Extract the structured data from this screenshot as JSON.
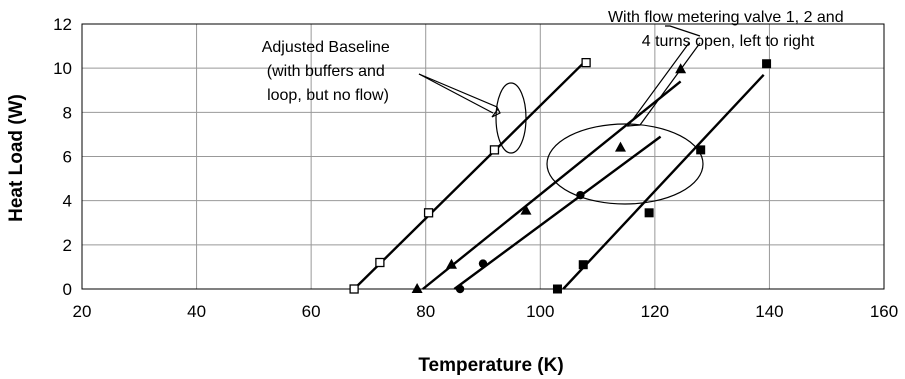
{
  "chart_data": {
    "type": "scatter",
    "title": "",
    "xlabel": "Temperature (K)",
    "ylabel": "Heat Load (W)",
    "xlim": [
      20,
      160
    ],
    "ylim": [
      0,
      12
    ],
    "xticks": [
      20,
      40,
      60,
      80,
      100,
      120,
      140,
      160
    ],
    "yticks": [
      0,
      2,
      4,
      6,
      8,
      10,
      12
    ],
    "grid": true,
    "legend": "none",
    "series": [
      {
        "marker": "open-square",
        "points": [
          [
            67.5,
            0
          ],
          [
            72,
            1.2
          ],
          [
            80.5,
            3.45
          ],
          [
            92,
            6.3
          ],
          [
            108,
            10.25
          ]
        ],
        "fit": [
          [
            67.5,
            0
          ],
          [
            108,
            10.35
          ]
        ]
      },
      {
        "marker": "triangle",
        "points": [
          [
            78.5,
            0
          ],
          [
            84.5,
            1.1
          ],
          [
            97.5,
            3.55
          ],
          [
            114,
            6.4
          ],
          [
            124.5,
            9.95
          ]
        ],
        "fit": [
          [
            79.5,
            0
          ],
          [
            124.5,
            9.4
          ]
        ]
      },
      {
        "marker": "circle",
        "points": [
          [
            86,
            0
          ],
          [
            90,
            1.15
          ],
          [
            107,
            4.25
          ]
        ],
        "fit": [
          [
            85,
            0
          ],
          [
            121,
            6.9
          ]
        ]
      },
      {
        "marker": "square",
        "points": [
          [
            103,
            0
          ],
          [
            107.5,
            1.1
          ],
          [
            119,
            3.45
          ],
          [
            128,
            6.3
          ],
          [
            139.5,
            10.2
          ]
        ],
        "fit": [
          [
            104,
            0
          ],
          [
            139,
            9.7
          ]
        ]
      }
    ],
    "annotations": [
      {
        "lines": [
          "Adjusted Baseline",
          "(with buffers and",
          "loop, but no flow)"
        ]
      },
      {
        "lines": [
          "With flow metering valve 1, 2 and",
          "4 turns open, left to right"
        ]
      }
    ]
  }
}
